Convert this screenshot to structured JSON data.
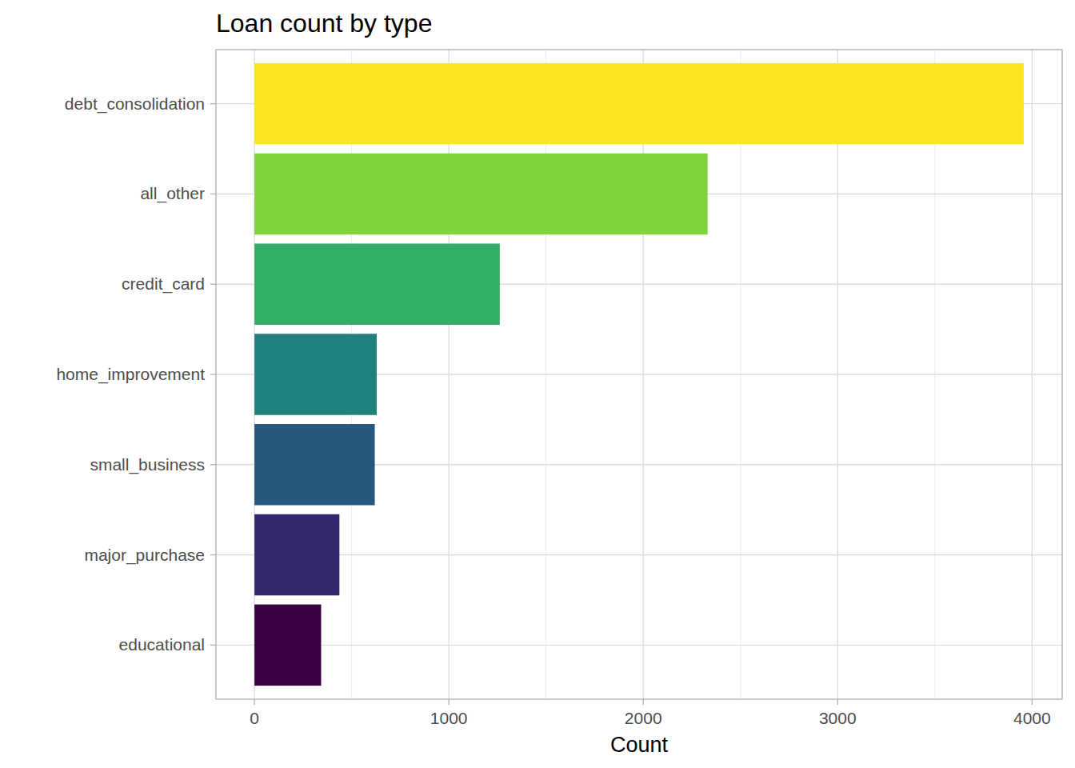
{
  "chart_data": {
    "type": "bar",
    "title": "Loan count by type",
    "x_label": "Count",
    "orientation": "horizontal",
    "categories": [
      "debt_consolidation",
      "all_other",
      "credit_card",
      "home_improvement",
      "small_business",
      "major_purchase",
      "educational"
    ],
    "values": [
      3957,
      2331,
      1262,
      629,
      619,
      437,
      343
    ],
    "colors": [
      "#FCE521",
      "#7FD43C",
      "#31AE68",
      "#20817D",
      "#28577C",
      "#35286C",
      "#380040"
    ],
    "xlim": [
      -198,
      4155
    ],
    "xticks": [
      0,
      1000,
      2000,
      3000,
      4000
    ],
    "grid": true
  }
}
